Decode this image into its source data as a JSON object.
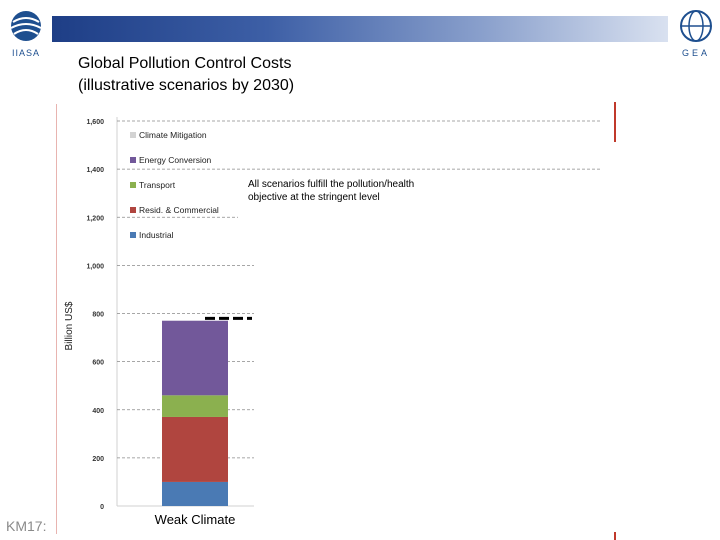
{
  "header": {
    "title_line1": "Global Pollution Control Costs",
    "title_line2": "(illustrative scenarios by 2030)",
    "logo_left_text": "IIASA",
    "logo_right_text": "GEA"
  },
  "footer": {
    "slide_code": "KM17:"
  },
  "chart_data": {
    "type": "bar",
    "stacked": true,
    "categories": [
      "Weak Climate"
    ],
    "series": [
      {
        "name": "Industrial",
        "values": [
          100
        ],
        "color": "#4a7ab4"
      },
      {
        "name": "Resid. & Commercial",
        "values": [
          270
        ],
        "color": "#b0453f"
      },
      {
        "name": "Transport",
        "values": [
          90
        ],
        "color": "#8bb04f"
      },
      {
        "name": "Energy Conversion",
        "values": [
          310
        ],
        "color": "#72589a"
      },
      {
        "name": "Climate Mitigation",
        "values": [
          0
        ],
        "color": "#d3d3d3"
      }
    ],
    "title": "Global Pollution Control Costs (illustrative scenarios by 2030)",
    "xlabel": "",
    "ylabel": "Billion US$",
    "ylim": [
      0,
      1600
    ],
    "yticks": [
      "0",
      "200",
      "400",
      "600",
      "800",
      "1,000",
      "1,200",
      "1,400",
      "1,600"
    ],
    "grid": true,
    "legend_placement": "top-left",
    "legend_order": [
      "Climate Mitigation",
      "Energy Conversion",
      "Transport",
      "Resid. & Commercial",
      "Industrial"
    ],
    "reference_level": 780,
    "annotation": "All scenarios fulfill the pollution/health objective at the stringent level"
  }
}
